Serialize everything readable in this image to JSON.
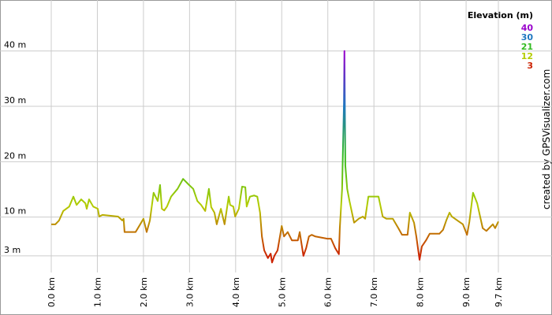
{
  "chart_data": {
    "type": "line",
    "legend_title": "Elevation (m)",
    "credit": "created by GPSVisualizer.com",
    "color_scale": [
      {
        "value": 40,
        "color": "#9900cc"
      },
      {
        "value": 30,
        "color": "#1f77c0"
      },
      {
        "value": 21,
        "color": "#33bb22"
      },
      {
        "value": 12,
        "color": "#b4cc00"
      },
      {
        "value": 3,
        "color": "#cc2200"
      }
    ],
    "x": [
      0,
      0.09,
      0.17,
      0.26,
      0.39,
      0.48,
      0.55,
      0.65,
      0.74,
      0.77,
      0.82,
      0.91,
      1.01,
      1.04,
      1.11,
      1.45,
      1.54,
      1.57,
      1.59,
      1.83,
      1.93,
      2.0,
      2.07,
      2.14,
      2.22,
      2.31,
      2.36,
      2.4,
      2.45,
      2.51,
      2.6,
      2.74,
      2.86,
      2.99,
      3.08,
      3.17,
      3.25,
      3.34,
      3.42,
      3.47,
      3.54,
      3.59,
      3.68,
      3.76,
      3.85,
      3.88,
      3.95,
      3.99,
      4.07,
      4.14,
      4.21,
      4.24,
      4.31,
      4.4,
      4.47,
      4.53,
      4.57,
      4.62,
      4.7,
      4.76,
      4.79,
      4.84,
      4.91,
      5.0,
      5.05,
      5.13,
      5.22,
      5.35,
      5.39,
      5.47,
      5.53,
      5.59,
      5.65,
      5.73,
      5.99,
      6.07,
      6.16,
      6.24,
      6.26,
      6.31,
      6.35,
      6.36,
      6.38,
      6.42,
      6.47,
      6.57,
      6.67,
      6.76,
      6.81,
      6.88,
      7.1,
      7.19,
      7.27,
      7.41,
      7.53,
      7.61,
      7.73,
      7.78,
      7.87,
      7.92,
      7.99,
      8.04,
      8.13,
      8.21,
      8.42,
      8.5,
      8.57,
      8.64,
      8.69,
      8.81,
      8.93,
      9.02,
      9.07,
      9.15,
      9.24,
      9.36,
      9.44,
      9.58,
      9.63,
      9.7
    ],
    "values": [
      8.7,
      8.7,
      9.4,
      11.1,
      11.9,
      13.7,
      12.2,
      13.2,
      12.5,
      11.5,
      13.2,
      11.9,
      11.5,
      10.1,
      10.4,
      10.1,
      9.4,
      9.7,
      7.3,
      7.3,
      8.7,
      9.7,
      7.3,
      9.4,
      14.4,
      12.9,
      15.8,
      11.5,
      11.2,
      11.9,
      13.7,
      15.1,
      16.9,
      15.8,
      15.1,
      12.9,
      12.2,
      11.1,
      15.1,
      11.8,
      10.8,
      8.7,
      11.5,
      8.7,
      13.7,
      12.2,
      11.9,
      10.1,
      11.5,
      15.5,
      15.4,
      11.9,
      13.7,
      13.9,
      13.7,
      10.8,
      6.5,
      4.0,
      2.6,
      3.4,
      1.8,
      3.0,
      4.0,
      8.4,
      6.5,
      7.3,
      5.8,
      5.8,
      7.3,
      3.0,
      4.4,
      6.5,
      6.8,
      6.5,
      6.1,
      6.1,
      4.4,
      3.3,
      8.0,
      15.1,
      30.7,
      40.0,
      19.3,
      15.1,
      12.9,
      9.0,
      9.7,
      10.1,
      9.7,
      13.7,
      13.7,
      10.1,
      9.7,
      9.7,
      8.0,
      6.8,
      6.8,
      10.8,
      9.0,
      6.5,
      2.3,
      4.7,
      5.8,
      7.0,
      7.0,
      7.7,
      9.4,
      10.8,
      10.1,
      9.4,
      8.7,
      6.8,
      9.1,
      14.4,
      12.5,
      8.0,
      7.5,
      8.7,
      8.0,
      9.2
    ],
    "xlim": [
      0,
      9.7
    ],
    "xticks": [
      {
        "value": 0,
        "label": "0.0 km"
      },
      {
        "value": 1,
        "label": "1.0 km"
      },
      {
        "value": 2,
        "label": "2.0 km"
      },
      {
        "value": 3,
        "label": "3.0 km"
      },
      {
        "value": 4,
        "label": "4.0 km"
      },
      {
        "value": 5,
        "label": "5.0 km"
      },
      {
        "value": 6,
        "label": "6.0 km"
      },
      {
        "value": 7,
        "label": "7.0 km"
      },
      {
        "value": 8,
        "label": "8.0 km"
      },
      {
        "value": 9,
        "label": "9.0 km"
      },
      {
        "value": 9.7,
        "label": "9.7 km"
      }
    ],
    "ylim": [
      0,
      49.2
    ],
    "yticks": [
      {
        "value": 3,
        "label": "3 m"
      },
      {
        "value": 10,
        "label": "10 m"
      },
      {
        "value": 20,
        "label": "20 m"
      },
      {
        "value": 30,
        "label": "30 m"
      },
      {
        "value": 40,
        "label": "40 m"
      }
    ],
    "grid": true
  }
}
